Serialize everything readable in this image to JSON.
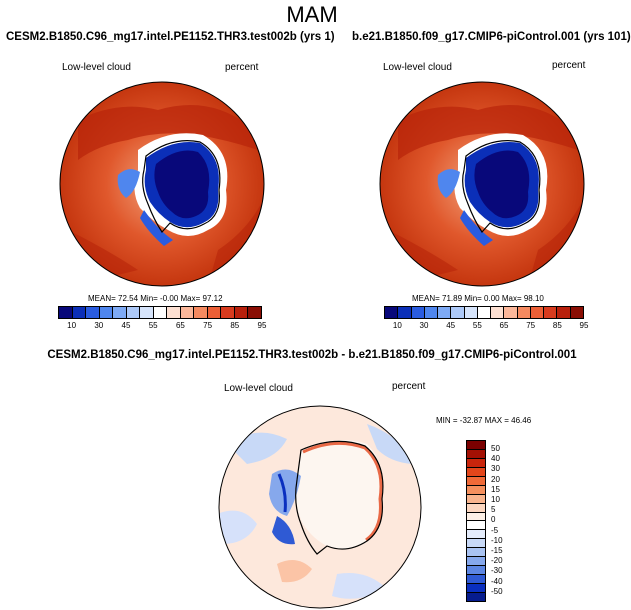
{
  "figure": {
    "title": "MAM",
    "variable": "Low-level cloud",
    "units": "percent"
  },
  "panel1": {
    "case": "CESM2.B1850.C96_mg17.intel.PE1152.THR3.test002b (yrs 1)",
    "stats": "MEAN=  72.54  Min=  -0.00  Max=  97.12"
  },
  "panel2": {
    "case": "b.e21.B1850.f09_g17.CMIP6-piControl.001 (yrs 101)",
    "stats": "MEAN=  71.89  Min=   0.00  Max=  98.10"
  },
  "panel3": {
    "case": "CESM2.B1850.C96_mg17.intel.PE1152.THR3.test002b - b.e21.B1850.f09_g17.CMIP6-piControl.001",
    "stats": "MIN = -32.87  MAX =  46.46"
  },
  "colorbar_top": {
    "ticks": [
      "10",
      "30",
      "45",
      "55",
      "65",
      "75",
      "85",
      "95"
    ],
    "colors": [
      "#08087a",
      "#0b2fb8",
      "#2a5ce0",
      "#4f86ee",
      "#7eaaf5",
      "#adc9f8",
      "#d6e4fb",
      "#ffffff",
      "#fde0d2",
      "#fbb79a",
      "#f58a60",
      "#ec5f36",
      "#d83b1e",
      "#b8200c",
      "#8a0e04"
    ]
  },
  "colorbar_diff": {
    "ticks": [
      "50",
      "40",
      "30",
      "20",
      "15",
      "10",
      "5",
      "0",
      "-5",
      "-10",
      "-15",
      "-20",
      "-30",
      "-40",
      "-50"
    ],
    "colors": [
      "#7a0000",
      "#a31004",
      "#c9250c",
      "#e3461b",
      "#f06a38",
      "#f5905e",
      "#f9b58e",
      "#fcd7c0",
      "#fdf0e6",
      "#ffffff",
      "#e4ecfb",
      "#c8d9f7",
      "#a9c3f2",
      "#86a8ec",
      "#5d86e2",
      "#2f5ad4",
      "#0a2fbf",
      "#061c8e"
    ]
  }
}
